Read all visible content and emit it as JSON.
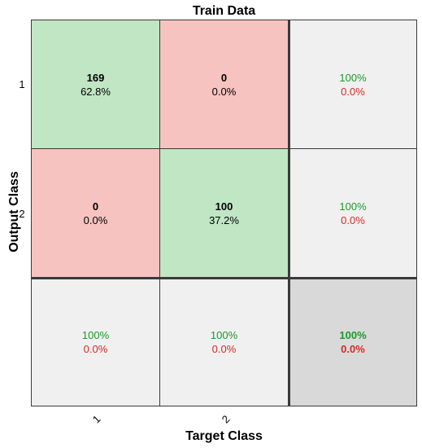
{
  "chart_data": {
    "type": "heatmap",
    "title": "Train Data",
    "xlabel": "Target Class",
    "ylabel": "Output Class",
    "x_tick_labels": [
      "1",
      "2"
    ],
    "y_tick_labels": [
      "1",
      "2"
    ],
    "matrix": [
      {
        "count": "169",
        "percent": "62.8%"
      },
      {
        "count": "0",
        "percent": "0.0%"
      },
      {
        "count": "0",
        "percent": "0.0%"
      },
      {
        "count": "100",
        "percent": "37.2%"
      }
    ],
    "row_summary": [
      {
        "correct": "100%",
        "wrong": "0.0%"
      },
      {
        "correct": "100%",
        "wrong": "0.0%"
      }
    ],
    "col_summary": [
      {
        "correct": "100%",
        "wrong": "0.0%"
      },
      {
        "correct": "100%",
        "wrong": "0.0%"
      }
    ],
    "overall": {
      "correct": "100%",
      "wrong": "0.0%"
    },
    "colors": {
      "correct_cell": "#c0e6c4",
      "wrong_cell": "#f6c3c0",
      "summary_cell": "#f0f0f0",
      "overall_cell": "#d9d9d9",
      "correct_text": "#1a9a28",
      "wrong_text": "#d42c26"
    }
  }
}
